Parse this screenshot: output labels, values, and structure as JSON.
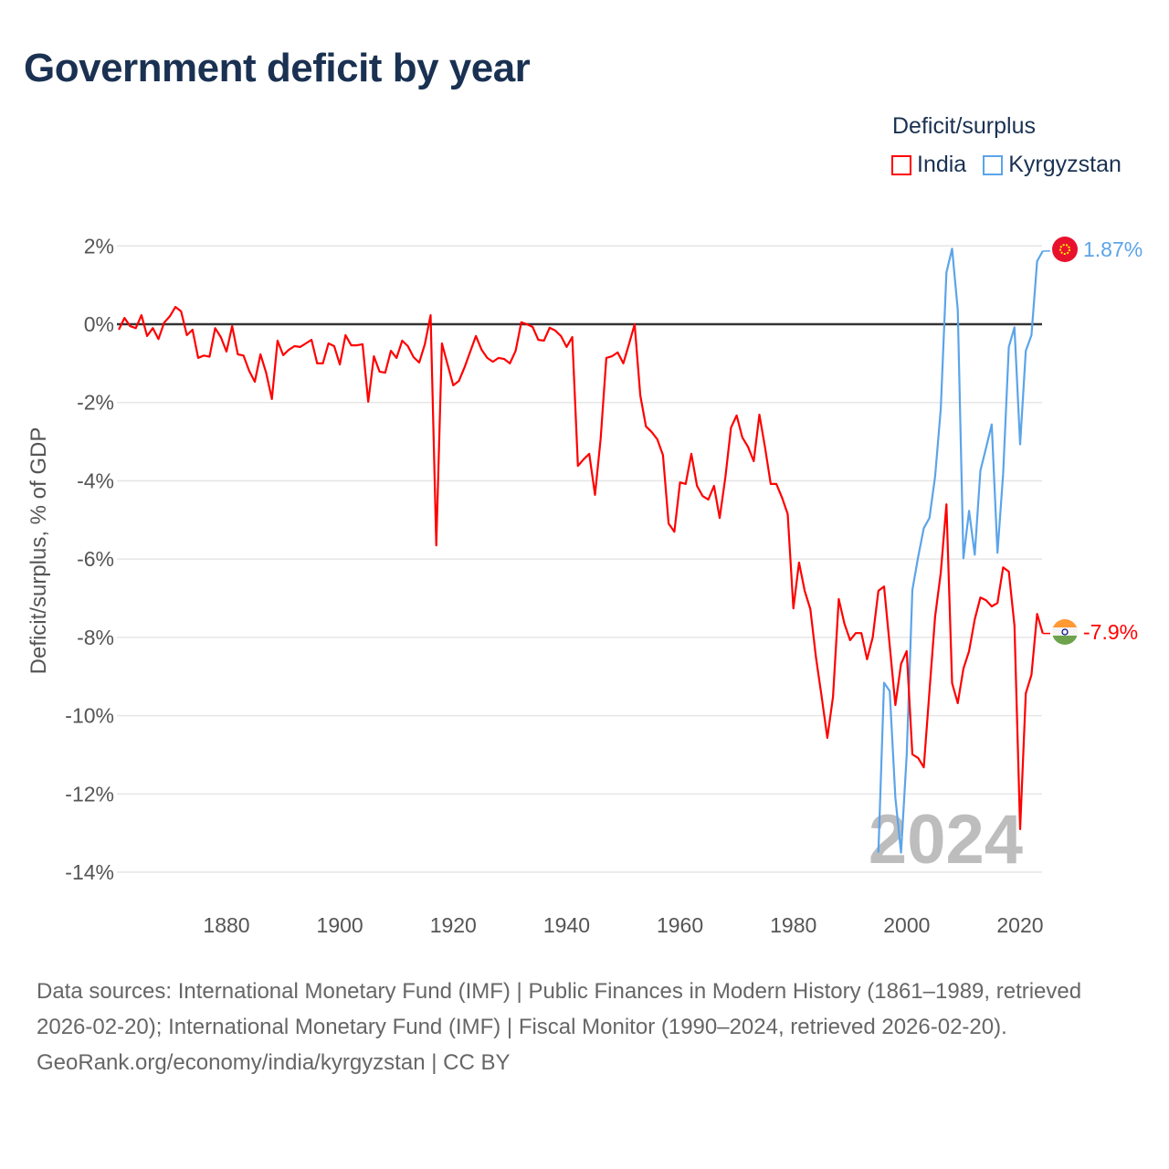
{
  "title": "Government deficit by year",
  "legend": {
    "title": "Deficit/surplus",
    "items": [
      {
        "name": "India",
        "color": "#ff0000"
      },
      {
        "name": "Kyrgyzstan",
        "color": "#5ba4ea"
      }
    ]
  },
  "watermark_year": "2024",
  "footer": {
    "sources": "Data sources: International Monetary Fund (IMF) | Public Finances in Modern History (1861–1989, retrieved 2026-02-20); International Monetary Fund (IMF) | Fiscal Monitor (1990–2024, retrieved 2026-02-20).",
    "credit": "GeoRank.org/economy/india/kyrgyzstan | CC BY"
  },
  "chart_data": {
    "type": "line",
    "title": "Government deficit by year",
    "xlabel": "",
    "ylabel": "Deficit/surplus, % of GDP",
    "xlim": [
      1861,
      2024
    ],
    "ylim": [
      -14,
      2
    ],
    "xticks": [
      1880,
      1900,
      1920,
      1940,
      1960,
      1980,
      2000,
      2020
    ],
    "yticks": [
      2,
      0,
      -2,
      -4,
      -6,
      -8,
      -10,
      -12,
      -14
    ],
    "ytick_labels": [
      "2%",
      "0%",
      "-2%",
      "-4%",
      "-6%",
      "-8%",
      "-10%",
      "-12%",
      "-14%"
    ],
    "grid": true,
    "legend_position": "top-right",
    "series": [
      {
        "name": "India",
        "color": "#ff0000",
        "start_year": 1861,
        "end_label": "-7.9%",
        "values": [
          -0.14,
          0.16,
          -0.05,
          -0.1,
          0.23,
          -0.3,
          -0.1,
          -0.38,
          0.04,
          0.2,
          0.44,
          0.33,
          -0.28,
          -0.14,
          -0.86,
          -0.8,
          -0.83,
          -0.1,
          -0.33,
          -0.7,
          -0.05,
          -0.77,
          -0.8,
          -1.19,
          -1.47,
          -0.77,
          -1.24,
          -1.91,
          -0.42,
          -0.79,
          -0.65,
          -0.56,
          -0.58,
          -0.49,
          -0.4,
          -1.0,
          -1.0,
          -0.49,
          -0.56,
          -1.03,
          -0.28,
          -0.54,
          -0.54,
          -0.51,
          -1.98,
          -0.82,
          -1.21,
          -1.24,
          -0.68,
          -0.86,
          -0.42,
          -0.56,
          -0.84,
          -0.98,
          -0.51,
          0.23,
          -5.65,
          -0.49,
          -1.03,
          -1.56,
          -1.45,
          -1.1,
          -0.7,
          -0.3,
          -0.65,
          -0.86,
          -0.96,
          -0.86,
          -0.89,
          -1.0,
          -0.68,
          0.05,
          0.0,
          -0.07,
          -0.4,
          -0.42,
          -0.09,
          -0.16,
          -0.3,
          -0.58,
          -0.33,
          -3.62,
          -3.45,
          -3.31,
          -4.36,
          -2.92,
          -0.86,
          -0.82,
          -0.72,
          -1.0,
          -0.51,
          0.0,
          -1.82,
          -2.61,
          -2.75,
          -2.94,
          -3.34,
          -5.09,
          -5.3,
          -4.04,
          -4.08,
          -3.31,
          -4.13,
          -4.39,
          -4.48,
          -4.13,
          -4.95,
          -3.92,
          -2.64,
          -2.33,
          -2.89,
          -3.13,
          -3.5,
          -2.31,
          -3.15,
          -4.08,
          -4.08,
          -4.43,
          -4.85,
          -7.26,
          -6.09,
          -6.81,
          -7.28,
          -8.52,
          -9.52,
          -10.57,
          -9.52,
          -7.02,
          -7.65,
          -8.07,
          -7.89,
          -7.89,
          -8.56,
          -8.0,
          -6.81,
          -6.7,
          -8.21,
          -9.73,
          -8.68,
          -8.35,
          -10.99,
          -11.08,
          -11.32,
          -9.38,
          -7.47,
          -6.35,
          -4.6,
          -9.17,
          -9.68,
          -8.8,
          -8.35,
          -7.54,
          -6.98,
          -7.05,
          -7.21,
          -7.12,
          -6.21,
          -6.32,
          -7.7,
          -12.9,
          -9.43,
          -8.96,
          -7.4,
          -7.9
        ]
      },
      {
        "name": "Kyrgyzstan",
        "color": "#5ba4ea",
        "start_year": 1995,
        "end_label": "1.87%",
        "values": [
          -13.5,
          -9.16,
          -9.37,
          -12.1,
          -13.5,
          -11.0,
          -6.79,
          -5.95,
          -5.21,
          -4.95,
          -3.89,
          -2.16,
          1.32,
          1.93,
          0.37,
          -5.98,
          -4.77,
          -5.89,
          -3.74,
          -3.16,
          -2.56,
          -5.84,
          -3.82,
          -0.58,
          -0.08,
          -3.07,
          -0.68,
          -0.28,
          1.61,
          1.87
        ]
      }
    ]
  }
}
